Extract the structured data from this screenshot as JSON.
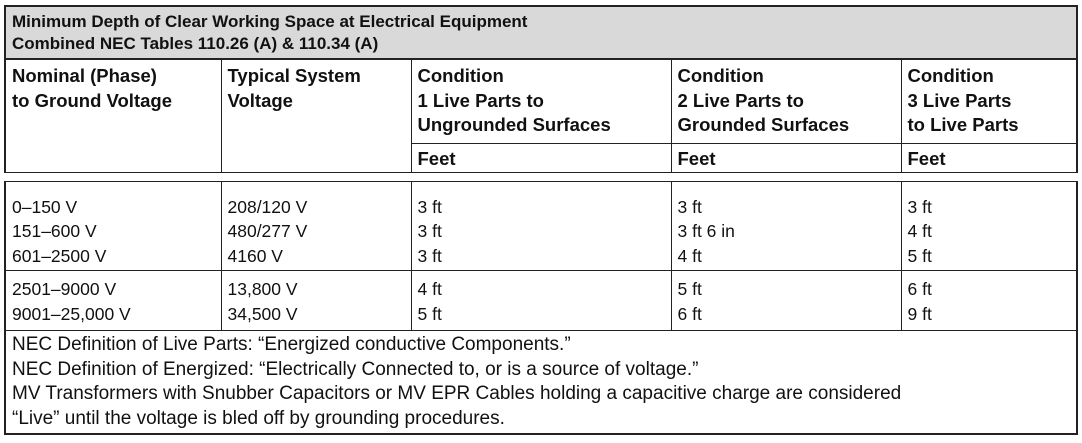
{
  "title": {
    "line1": "Minimum Depth of Clear Working Space at Electrical Equipment",
    "line2": "Combined NEC Tables 110.26 (A) & 110.34 (A)"
  },
  "headers": {
    "col1": [
      "Nominal (Phase)",
      "to Ground Voltage"
    ],
    "col2": [
      "Typical System",
      "Voltage"
    ],
    "col3": [
      "Condition",
      "1 Live Parts to",
      "Ungrounded Surfaces"
    ],
    "col4": [
      "Condition",
      "2 Live Parts to",
      "Grounded Surfaces"
    ],
    "col5": [
      "Condition",
      "3 Live Parts",
      "to Live Parts"
    ],
    "unit": "Feet"
  },
  "group1": {
    "nominal": [
      "0–150 V",
      "151–600 V",
      "601–2500 V"
    ],
    "typical": [
      "208/120 V",
      "480/277 V",
      "4160 V"
    ],
    "cond1": [
      "3 ft",
      "3 ft",
      "3 ft"
    ],
    "cond2": [
      "3 ft",
      "3 ft 6 in",
      "4 ft"
    ],
    "cond3": [
      "3 ft",
      "4 ft",
      "5 ft"
    ]
  },
  "group2": {
    "nominal": [
      "2501–9000 V",
      "9001–25,000 V"
    ],
    "typical": [
      "13,800 V",
      "34,500 V"
    ],
    "cond1": [
      "4 ft",
      "5 ft"
    ],
    "cond2": [
      "5 ft",
      "6 ft"
    ],
    "cond3": [
      "6 ft",
      "9 ft"
    ]
  },
  "notes": [
    "NEC Definition of Live Parts: “Energized conductive Components.”",
    "NEC Definition of Energized: “Electrically Connected to, or is a source of voltage.”",
    "MV Transformers with Snubber Capacitors or MV EPR Cables holding a capacitive charge are considered",
    "“Live” until the voltage is bled off by grounding procedures."
  ]
}
